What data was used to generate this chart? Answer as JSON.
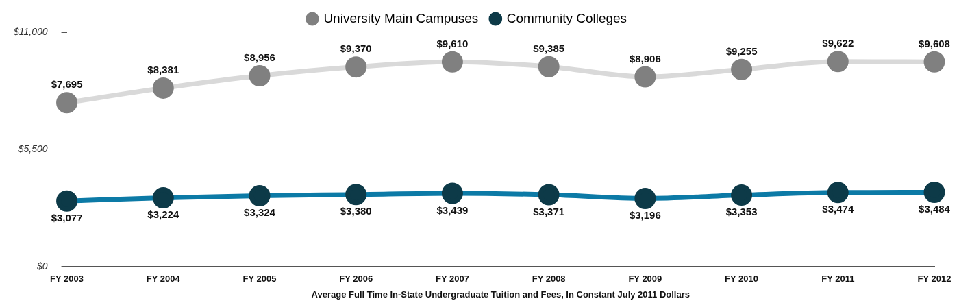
{
  "chart_data": {
    "type": "line",
    "xlabel": "Average Full Time In-State Undergraduate Tuition and Fees, In Constant July 2011 Dollars",
    "categories": [
      "FY 2003",
      "FY 2004",
      "FY 2005",
      "FY 2006",
      "FY 2007",
      "FY 2008",
      "FY 2009",
      "FY 2010",
      "FY 2011",
      "FY 2012"
    ],
    "ylim": [
      0,
      11000
    ],
    "yticks": [
      {
        "value": 0,
        "label": "$0"
      },
      {
        "value": 5500,
        "label": "$5,500"
      },
      {
        "value": 11000,
        "label": "$11,000"
      }
    ],
    "grid": false,
    "legend": "top",
    "marker": "circle",
    "series": [
      {
        "name": "University Main Campuses",
        "color": "#d9d9d9",
        "colors": [
          "#808080",
          "#808080",
          "#808080",
          "#808080",
          "#808080",
          "#808080",
          "#808080",
          "#808080",
          "#808080",
          "#808080"
        ],
        "values": [
          7695,
          8381,
          8956,
          9370,
          9610,
          9385,
          8906,
          9255,
          9622,
          9608
        ],
        "value_labels": [
          "$7,695",
          "$8,381",
          "$8,956",
          "$9,370",
          "$9,610",
          "$9,385",
          "$8,906",
          "$9,255",
          "$9,622",
          "$9,608"
        ]
      },
      {
        "name": "Community Colleges",
        "color": "#0c7aa6",
        "colors": [
          "#0d3a48",
          "#0d3a48",
          "#0d3a48",
          "#0d3a48",
          "#0d3a48",
          "#0d3a48",
          "#0d3a48",
          "#0d3a48",
          "#0d3a48",
          "#0d3a48"
        ],
        "values": [
          3077,
          3224,
          3324,
          3380,
          3439,
          3371,
          3196,
          3353,
          3474,
          3484
        ],
        "value_labels": [
          "$3,077",
          "$3,224",
          "$3,324",
          "$3,380",
          "$3,439",
          "$3,371",
          "$3,196",
          "$3,353",
          "$3,474",
          "$3,484"
        ]
      }
    ]
  }
}
